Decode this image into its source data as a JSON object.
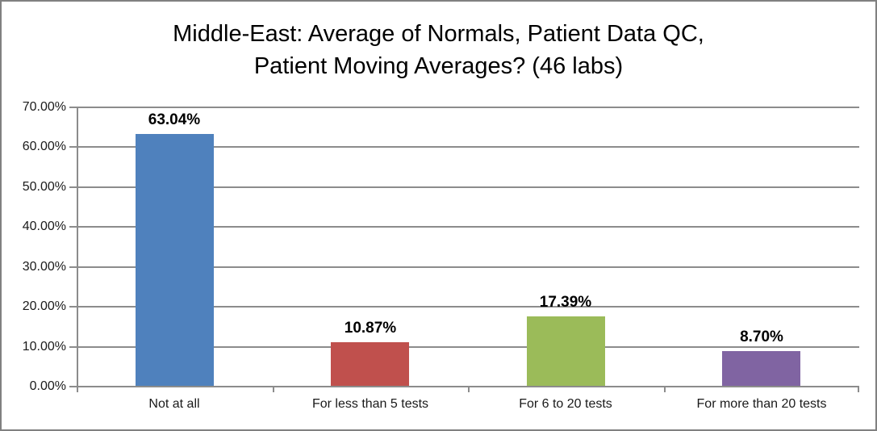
{
  "frame": {
    "background": "#FFFFFF",
    "border_color": "#808080"
  },
  "chart_data": {
    "type": "bar",
    "title": "Middle-East: Average of Normals, Patient Data QC, Patient Moving Averages? (46 labs)",
    "title_lines": [
      "Middle-East: Average of Normals, Patient Data QC,",
      "Patient Moving Averages? (46 labs)"
    ],
    "categories": [
      "Not at all",
      "For less than 5 tests",
      "For 6 to 20 tests",
      "For more than 20 tests"
    ],
    "values": [
      63.04,
      10.87,
      17.39,
      8.7
    ],
    "data_labels": [
      "63.04%",
      "10.87%",
      "17.39%",
      "8.70%"
    ],
    "bar_colors": [
      "#4F81BD",
      "#C0504D",
      "#9BBB59",
      "#8064A2"
    ],
    "xlabel": "",
    "ylabel": "",
    "ylim": [
      0,
      70
    ],
    "ytick_step": 10,
    "ytick_labels": [
      "0.00%",
      "10.00%",
      "20.00%",
      "30.00%",
      "40.00%",
      "50.00%",
      "60.00%",
      "70.00%"
    ],
    "grid": true,
    "legend_position": "none",
    "gridline_color": "#8C8C8C",
    "axis_color": "#8C8C8C",
    "data_label_color": "#000000",
    "tick_label_color": "#1A1A1A"
  }
}
